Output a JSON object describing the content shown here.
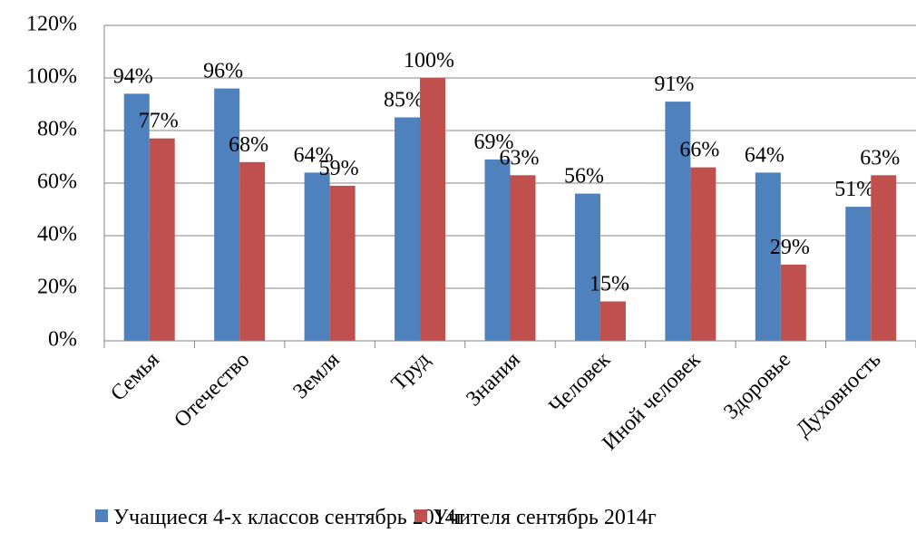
{
  "chart_data": {
    "type": "bar",
    "categories": [
      "Семья",
      "Отечество",
      "Земля",
      "Труд",
      "Знания",
      "Человек",
      "Иной человек",
      "Здоровье",
      "Духовность"
    ],
    "series": [
      {
        "name": "Учащиеся 4-х классов сентябрь 2014г",
        "color": "#4f81bd",
        "values": [
          94,
          96,
          64,
          85,
          69,
          56,
          91,
          64,
          51
        ],
        "value_labels": [
          "94%",
          "96%",
          "64%",
          "85%",
          "69%",
          "56%",
          "91%",
          "64%",
          "51%"
        ]
      },
      {
        "name": "Учителя сентябрь 2014г",
        "color": "#c0504d",
        "values": [
          77,
          68,
          59,
          100,
          63,
          15,
          66,
          29,
          63
        ],
        "value_labels": [
          "77%",
          "68%",
          "59%",
          "100%",
          "63%",
          "15%",
          "66%",
          "29%",
          "63%"
        ]
      }
    ],
    "ylim": [
      0,
      120
    ],
    "yticks": [
      {
        "value": 0,
        "label": "0%"
      },
      {
        "value": 20,
        "label": "20%"
      },
      {
        "value": 40,
        "label": "40%"
      },
      {
        "value": 60,
        "label": "60%"
      },
      {
        "value": 80,
        "label": "80%"
      },
      {
        "value": 100,
        "label": "100%"
      },
      {
        "value": 120,
        "label": "120%"
      }
    ],
    "grid": true,
    "legend": "bottom"
  }
}
